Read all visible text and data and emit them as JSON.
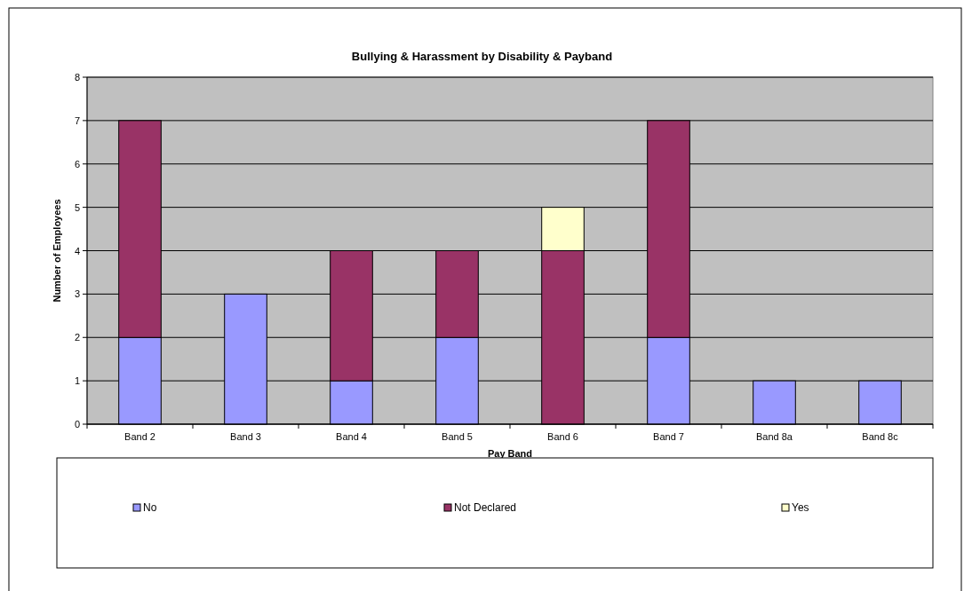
{
  "chart_data": {
    "type": "bar",
    "title": "Bullying & Harassment by Disability & Payband",
    "xlabel": "Pay Band",
    "ylabel": "Number of Employees",
    "categories": [
      "Band 2",
      "Band 3",
      "Band 4",
      "Band 5",
      "Band 6",
      "Band 7",
      "Band 8a",
      "Band 8c"
    ],
    "stacked": true,
    "series": [
      {
        "name": "No",
        "color": "#9999ff",
        "values": [
          2,
          3,
          1,
          2,
          0,
          2,
          1,
          1
        ]
      },
      {
        "name": "Not Declared",
        "color": "#993366",
        "values": [
          5,
          0,
          3,
          2,
          4,
          5,
          0,
          0
        ]
      },
      {
        "name": "Yes",
        "color": "#ffffcc",
        "values": [
          0,
          0,
          0,
          0,
          1,
          0,
          0,
          0
        ]
      }
    ],
    "ylim": [
      0,
      8
    ],
    "yticks": [
      0,
      1,
      2,
      3,
      4,
      5,
      6,
      7,
      8
    ],
    "grid": "y",
    "legend": "bottom"
  }
}
